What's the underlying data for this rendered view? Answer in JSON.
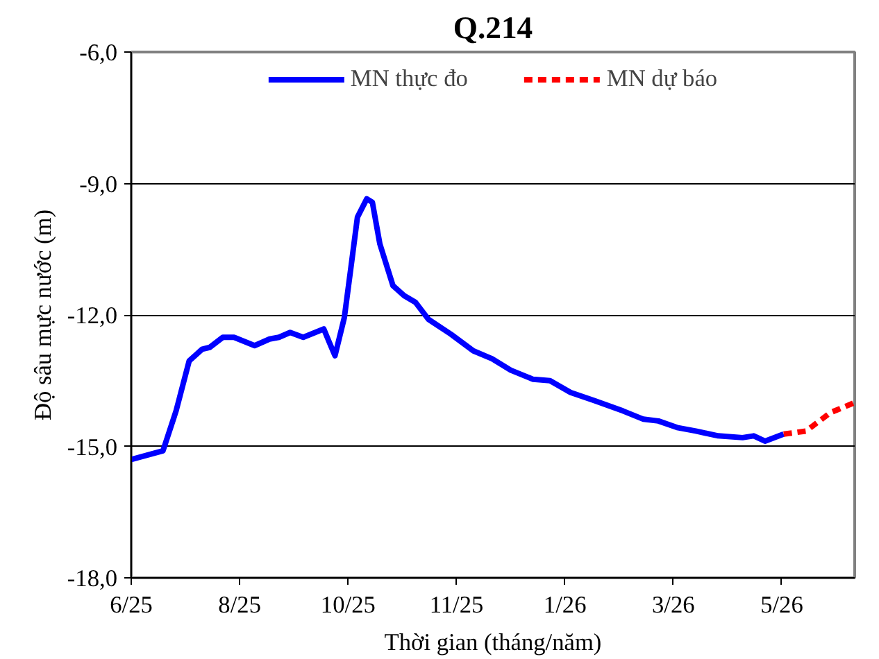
{
  "chart_data": {
    "type": "line",
    "title": "Q.214",
    "xlabel": "Thời gian (tháng/năm)",
    "ylabel": "Độ sâu mực nước (m)",
    "xlim": [
      "2025-06-09",
      "2026-07-01"
    ],
    "xticks": [
      {
        "value": "2025-06-09",
        "label": "6/25"
      },
      {
        "value": "2025-08-06",
        "label": "8/25"
      },
      {
        "value": "2025-10-03",
        "label": "10/25"
      },
      {
        "value": "2025-11-30",
        "label": "11/25"
      },
      {
        "value": "2026-01-27",
        "label": "1/26"
      },
      {
        "value": "2026-03-26",
        "label": "3/26"
      },
      {
        "value": "2026-05-23",
        "label": "5/26"
      }
    ],
    "ylim": [
      -18,
      -6
    ],
    "yticks": [
      {
        "value": -18,
        "label": "-18,0"
      },
      {
        "value": -15,
        "label": "-15,0"
      },
      {
        "value": -12,
        "label": "-12,0"
      },
      {
        "value": -9,
        "label": "-9,0"
      },
      {
        "value": -6,
        "label": "-6,0"
      }
    ],
    "grid": "y",
    "legend": "top",
    "marker": "none",
    "series": [
      {
        "name": "MN thực đo",
        "color": "#0000ff",
        "line_style": "solid",
        "x": [
          "2025-06-09",
          "2025-06-26",
          "2025-07-03",
          "2025-07-10",
          "2025-07-17",
          "2025-07-21",
          "2025-07-28",
          "2025-08-03",
          "2025-08-14",
          "2025-08-22",
          "2025-08-27",
          "2025-09-02",
          "2025-09-09",
          "2025-09-20",
          "2025-09-23",
          "2025-09-26",
          "2025-10-01",
          "2025-10-05",
          "2025-10-08",
          "2025-10-13",
          "2025-10-16",
          "2025-10-20",
          "2025-10-27",
          "2025-11-02",
          "2025-11-08",
          "2025-11-15",
          "2025-11-27",
          "2025-12-09",
          "2025-12-19",
          "2025-12-29",
          "2026-01-10",
          "2026-01-19",
          "2026-01-30",
          "2026-02-12",
          "2026-02-27",
          "2026-03-10",
          "2026-03-18",
          "2026-03-28",
          "2026-04-07",
          "2026-04-19",
          "2026-05-02",
          "2026-05-08",
          "2026-05-14",
          "2026-05-24"
        ],
        "values": [
          -15.3,
          -15.1,
          -14.19,
          -13.05,
          -12.78,
          -12.74,
          -12.51,
          -12.51,
          -12.7,
          -12.55,
          -12.51,
          -12.4,
          -12.51,
          -12.32,
          -12.63,
          -12.93,
          -12.06,
          -10.76,
          -9.77,
          -9.35,
          -9.43,
          -10.38,
          -11.33,
          -11.56,
          -11.71,
          -12.1,
          -12.44,
          -12.82,
          -13.0,
          -13.26,
          -13.47,
          -13.5,
          -13.77,
          -13.96,
          -14.19,
          -14.38,
          -14.42,
          -14.57,
          -14.65,
          -14.76,
          -14.8,
          -14.76,
          -14.88,
          -14.72
        ]
      },
      {
        "name": "MN dự báo",
        "color": "#ff0000",
        "line_style": "dashed",
        "x": [
          "2026-05-24",
          "2026-06-05",
          "2026-06-18",
          "2026-07-01"
        ],
        "values": [
          -14.72,
          -14.65,
          -14.23,
          -14.0
        ]
      }
    ]
  }
}
